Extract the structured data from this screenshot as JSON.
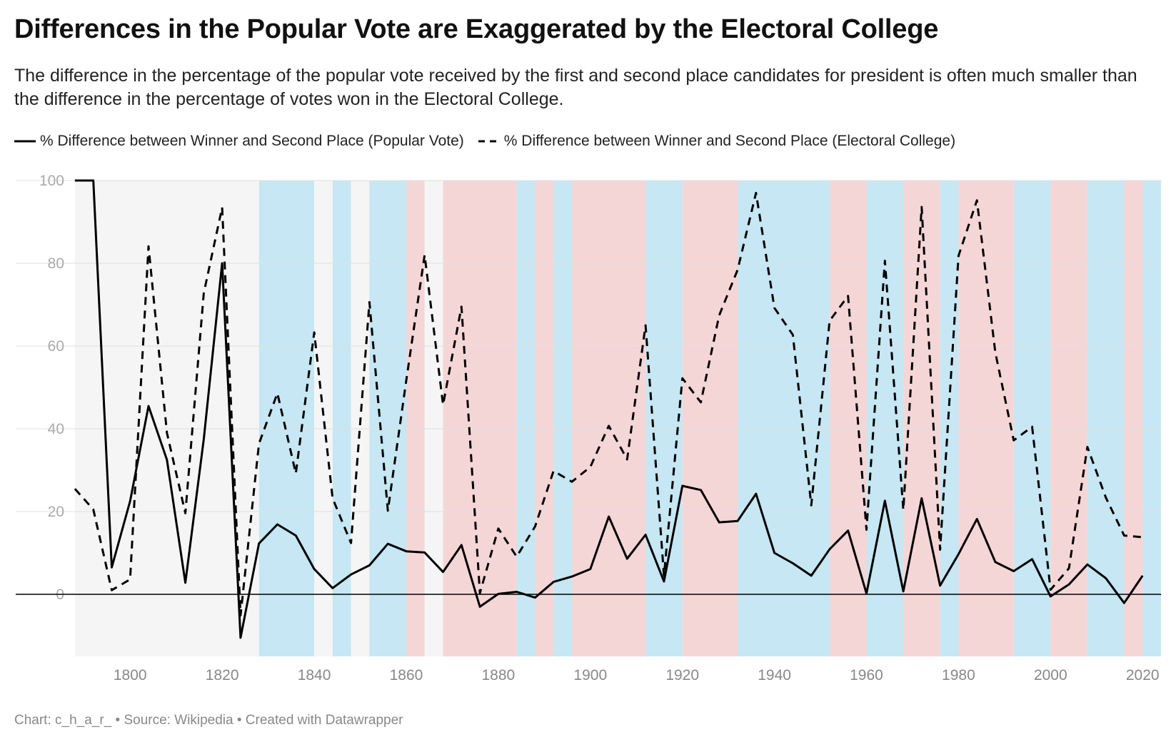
{
  "header": {
    "title": "Differences in the Popular Vote are Exaggerated by the Electoral College",
    "subtitle": "The difference in the percentage of the popular vote received by the first and second place candidates for president is often much smaller than the difference in the percentage of votes won in the Electoral College."
  },
  "footer": {
    "credit": "Chart: c_h_a_r_ • Source: Wikipedia • Created with Datawrapper"
  },
  "chart_data": {
    "type": "line",
    "title": "Differences in the Popular Vote are Exaggerated by the Electoral College",
    "xlabel": "",
    "ylabel": "",
    "xlim": [
      1786,
      2024
    ],
    "ylim": [
      -15,
      100
    ],
    "x_ticks": [
      1800,
      1820,
      1840,
      1860,
      1880,
      1900,
      1920,
      1940,
      1960,
      1980,
      2000,
      2020
    ],
    "y_ticks": [
      0,
      20,
      40,
      60,
      80,
      100
    ],
    "grid": true,
    "legend_position": "top",
    "x": [
      1788,
      1792,
      1796,
      1800,
      1804,
      1808,
      1812,
      1816,
      1820,
      1824,
      1828,
      1832,
      1836,
      1840,
      1844,
      1848,
      1852,
      1856,
      1860,
      1864,
      1868,
      1872,
      1876,
      1880,
      1884,
      1888,
      1892,
      1896,
      1900,
      1904,
      1908,
      1912,
      1916,
      1920,
      1924,
      1928,
      1932,
      1936,
      1940,
      1944,
      1948,
      1952,
      1956,
      1960,
      1964,
      1968,
      1972,
      1976,
      1980,
      1984,
      1988,
      1992,
      1996,
      2000,
      2004,
      2008,
      2012,
      2016,
      2020
    ],
    "series": [
      {
        "name": "% Difference between Winner and Second Place (Popular Vote)",
        "style": "solid",
        "color": "#000000",
        "values": [
          100,
          100,
          6.5,
          22.5,
          45.5,
          32.5,
          2.8,
          37.5,
          80,
          -10.5,
          12.3,
          16.9,
          14.2,
          6.1,
          1.5,
          4.8,
          7,
          12.2,
          10.4,
          10.1,
          5.4,
          11.9,
          -3,
          0.1,
          0.6,
          -0.8,
          3,
          4.3,
          6.1,
          18.8,
          8.6,
          14.4,
          3.1,
          26.2,
          25.2,
          17.4,
          17.7,
          24.3,
          10,
          7.5,
          4.5,
          10.9,
          15.4,
          0.2,
          22.6,
          0.7,
          23.2,
          2.1,
          9.7,
          18.2,
          7.8,
          5.6,
          8.5,
          -0.5,
          2.4,
          7.2,
          3.9,
          -2.1,
          4.5
        ]
      },
      {
        "name": "% Difference between Winner and Second Place (Electoral College)",
        "style": "dashed",
        "color": "#000000",
        "values": [
          25.5,
          20.5,
          1,
          3.6,
          84.1,
          39,
          19.6,
          72.8,
          93.5,
          -5.1,
          36.4,
          48.6,
          29.2,
          63.3,
          23.2,
          12.4,
          70.6,
          20.2,
          51.7,
          82,
          45.8,
          69.5,
          0.3,
          15.9,
          9.1,
          16.4,
          29.8,
          27.2,
          30.8,
          40.7,
          32.6,
          65,
          4.5,
          52.2,
          46.4,
          67.4,
          78.4,
          97,
          69.2,
          62.7,
          21.5,
          66.1,
          72.1,
          15.6,
          80.6,
          20.4,
          93.6,
          10.8,
          81.8,
          95.2,
          58.4,
          37.2,
          40.5,
          1.1,
          6.3,
          35.6,
          23.4,
          14.2,
          13.8
        ]
      }
    ],
    "background_bands": {
      "colors": {
        "none": "#f5f5f5",
        "democratic": "#c6e7f3",
        "republican": "#f5d6d6"
      },
      "periods": [
        {
          "start": 1788,
          "end": 1828,
          "party": "none"
        },
        {
          "start": 1828,
          "end": 1840,
          "party": "democratic"
        },
        {
          "start": 1840,
          "end": 1844,
          "party": "none"
        },
        {
          "start": 1844,
          "end": 1848,
          "party": "democratic"
        },
        {
          "start": 1848,
          "end": 1852,
          "party": "none"
        },
        {
          "start": 1852,
          "end": 1860,
          "party": "democratic"
        },
        {
          "start": 1860,
          "end": 1864,
          "party": "republican"
        },
        {
          "start": 1864,
          "end": 1868,
          "party": "none"
        },
        {
          "start": 1868,
          "end": 1884,
          "party": "republican"
        },
        {
          "start": 1884,
          "end": 1888,
          "party": "democratic"
        },
        {
          "start": 1888,
          "end": 1892,
          "party": "republican"
        },
        {
          "start": 1892,
          "end": 1896,
          "party": "democratic"
        },
        {
          "start": 1896,
          "end": 1912,
          "party": "republican"
        },
        {
          "start": 1912,
          "end": 1920,
          "party": "democratic"
        },
        {
          "start": 1920,
          "end": 1932,
          "party": "republican"
        },
        {
          "start": 1932,
          "end": 1952,
          "party": "democratic"
        },
        {
          "start": 1952,
          "end": 1960,
          "party": "republican"
        },
        {
          "start": 1960,
          "end": 1968,
          "party": "democratic"
        },
        {
          "start": 1968,
          "end": 1976,
          "party": "republican"
        },
        {
          "start": 1976,
          "end": 1980,
          "party": "democratic"
        },
        {
          "start": 1980,
          "end": 1992,
          "party": "republican"
        },
        {
          "start": 1992,
          "end": 2000,
          "party": "democratic"
        },
        {
          "start": 2000,
          "end": 2008,
          "party": "republican"
        },
        {
          "start": 2008,
          "end": 2016,
          "party": "democratic"
        },
        {
          "start": 2016,
          "end": 2020,
          "party": "republican"
        },
        {
          "start": 2020,
          "end": 2024,
          "party": "democratic"
        }
      ]
    }
  }
}
